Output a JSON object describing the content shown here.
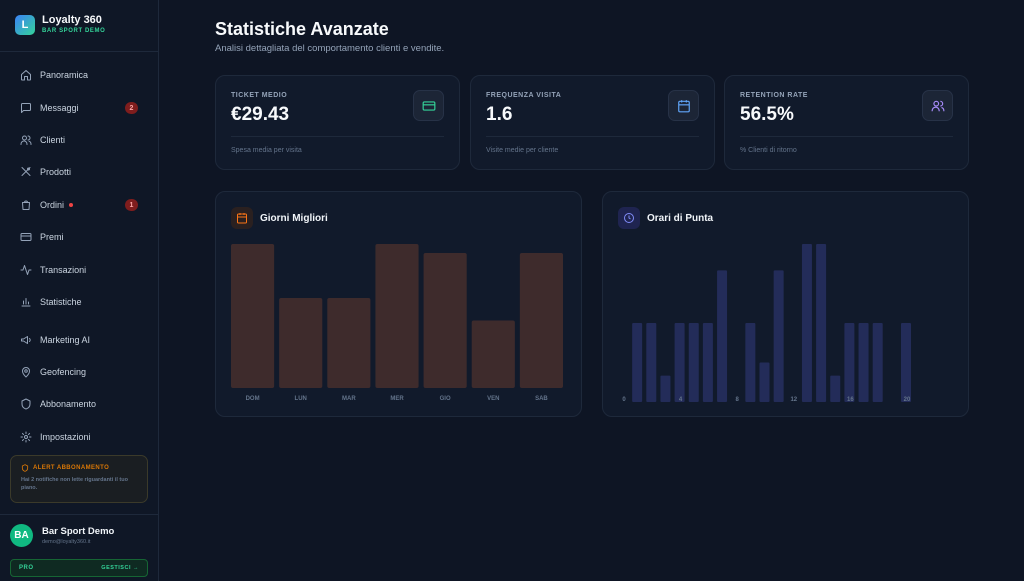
{
  "app": {
    "logo_letter": "L",
    "title": "Loyalty 360",
    "subtitle": "BAR SPORT DEMO"
  },
  "sidebar": {
    "items": [
      {
        "label": "Panoramica",
        "icon": "home-icon"
      },
      {
        "label": "Messaggi",
        "icon": "message-icon",
        "badge": "2"
      },
      {
        "label": "Clienti",
        "icon": "users-icon"
      },
      {
        "label": "Prodotti",
        "icon": "utensils-icon"
      },
      {
        "label": "Ordini",
        "icon": "shopping-bag-icon",
        "badge": "1",
        "dot": true
      },
      {
        "label": "Premi",
        "icon": "credit-card-icon"
      },
      {
        "label": "Transazioni",
        "icon": "activity-icon"
      },
      {
        "label": "Statistiche",
        "icon": "bar-chart-icon"
      },
      {
        "label": "Marketing AI",
        "icon": "megaphone-icon"
      },
      {
        "label": "Geofencing",
        "icon": "map-pin-icon"
      },
      {
        "label": "Abbonamento",
        "icon": "shield-icon"
      },
      {
        "label": "Impostazioni",
        "icon": "gear-icon"
      }
    ],
    "alert": {
      "title": "ALERT ABBONAMENTO",
      "text": "Hai 2 notifiche non lette riguardanti il tuo piano."
    },
    "user": {
      "initials": "BA",
      "name": "Bar Sport Demo",
      "email": "demo@loyalty360.it"
    },
    "plan": {
      "name": "PRO",
      "action": "GESTISCI →"
    }
  },
  "main": {
    "title": "Statistiche Avanzate",
    "subtitle": "Analisi dettagliata del comportamento clienti e vendite."
  },
  "stats": [
    {
      "label": "TICKET MEDIO",
      "value": "€29.43",
      "note": "Spesa media per visita",
      "icon": "credit-card-icon",
      "color": "#34d399"
    },
    {
      "label": "FREQUENZA VISITA",
      "value": "1.6",
      "note": "Visite medie per cliente",
      "icon": "calendar-icon",
      "color": "#60a5fa"
    },
    {
      "label": "RETENTION RATE",
      "value": "56.5%",
      "note": "% Clienti di ritorno",
      "icon": "users-icon",
      "color": "#a78bfa"
    }
  ],
  "colors": {
    "days_bar": "#3e2b2c",
    "hours_bar": "#232c59"
  },
  "chart_data": [
    {
      "type": "bar",
      "title": "Giorni Migliori",
      "icon": "calendar-icon",
      "categories": [
        "DOM",
        "LUN",
        "MAR",
        "MER",
        "GIO",
        "VEN",
        "SAB"
      ],
      "values": [
        16,
        10,
        10,
        16,
        15,
        7.5,
        15
      ],
      "ylim": [
        0,
        16
      ],
      "grid": false
    },
    {
      "type": "bar",
      "title": "Orari di Punta",
      "icon": "clock-icon",
      "x": [
        0,
        1,
        2,
        3,
        4,
        5,
        6,
        7,
        8,
        9,
        10,
        11,
        12,
        13,
        14,
        15,
        16,
        17,
        18,
        19,
        20,
        21,
        22,
        23
      ],
      "x_tick_labels": [
        "0",
        "4",
        "8",
        "12",
        "16",
        "20"
      ],
      "x_tick_positions": [
        0,
        4,
        8,
        12,
        16,
        20
      ],
      "values": [
        0,
        3,
        3,
        1,
        3,
        3,
        3,
        5,
        0,
        3,
        1.5,
        5,
        0,
        6,
        6,
        1,
        3,
        3,
        3,
        0,
        3,
        0,
        0,
        0
      ],
      "ylim": [
        0,
        6
      ],
      "grid": false
    }
  ]
}
